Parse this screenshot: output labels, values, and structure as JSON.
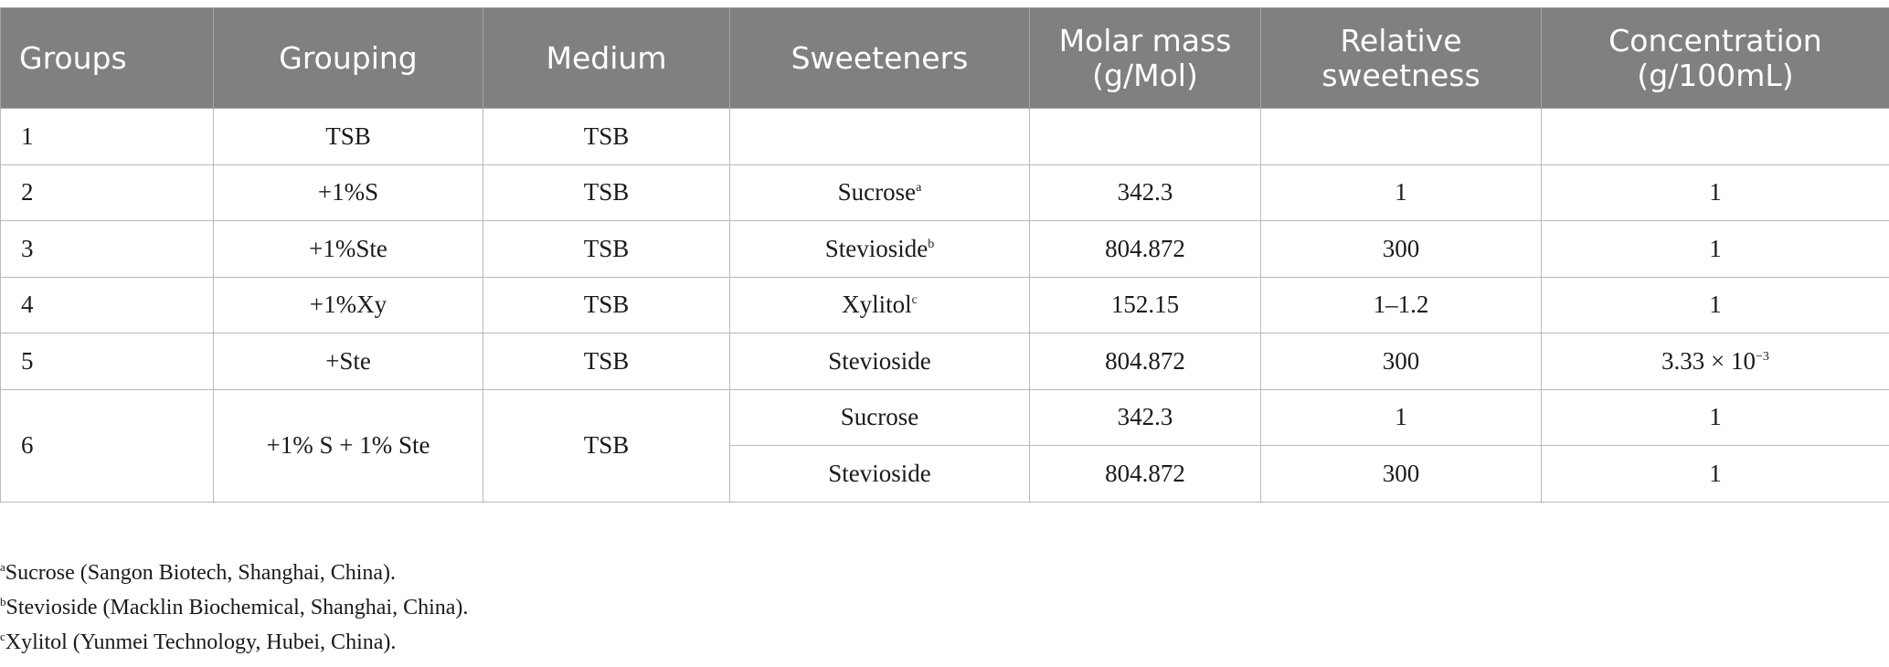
{
  "header": {
    "groups": "Groups",
    "grouping": "Grouping",
    "medium": "Medium",
    "sweeteners": "Sweeteners",
    "molar_mass_1": "Molar mass",
    "molar_mass_2": "(g/Mol)",
    "relative_sweetness_1": "Relative",
    "relative_sweetness_2": "sweetness",
    "concentration_1": "Concentration",
    "concentration_2": "(g/100mL)"
  },
  "rows": [
    {
      "group": "1",
      "grouping": "TSB",
      "medium": "TSB",
      "sweetener": "",
      "sweetener_sup": "",
      "molar_mass": "",
      "relative_sweetness": "",
      "concentration": ""
    },
    {
      "group": "2",
      "grouping": "+1%S",
      "medium": "TSB",
      "sweetener": "Sucrose",
      "sweetener_sup": "a",
      "molar_mass": "342.3",
      "relative_sweetness": "1",
      "concentration": "1"
    },
    {
      "group": "3",
      "grouping": "+1%Ste",
      "medium": "TSB",
      "sweetener": "Stevioside",
      "sweetener_sup": "b",
      "molar_mass": "804.872",
      "relative_sweetness": "300",
      "concentration": "1"
    },
    {
      "group": "4",
      "grouping": "+1%Xy",
      "medium": "TSB",
      "sweetener": "Xylitol",
      "sweetener_sup": "c",
      "molar_mass": "152.15",
      "relative_sweetness": "1–1.2",
      "concentration": "1"
    },
    {
      "group": "5",
      "grouping": "+Ste",
      "medium": "TSB",
      "sweetener": "Stevioside",
      "sweetener_sup": "",
      "molar_mass": "804.872",
      "relative_sweetness": "300",
      "concentration_base": "3.33 × 10",
      "concentration_exp": "−3"
    },
    {
      "group": "6",
      "grouping": "+1% S + 1% Ste",
      "medium": "TSB",
      "sub": [
        {
          "sweetener": "Sucrose",
          "molar_mass": "342.3",
          "relative_sweetness": "1",
          "concentration": "1"
        },
        {
          "sweetener": "Stevioside",
          "molar_mass": "804.872",
          "relative_sweetness": "300",
          "concentration": "1"
        }
      ]
    }
  ],
  "footnotes": [
    {
      "mark": "a",
      "text": "Sucrose (Sangon Biotech, Shanghai, China)."
    },
    {
      "mark": "b",
      "text": "Stevioside (Macklin Biochemical, Shanghai, China)."
    },
    {
      "mark": "c",
      "text": "Xylitol (Yunmei Technology, Hubei, China)."
    }
  ]
}
